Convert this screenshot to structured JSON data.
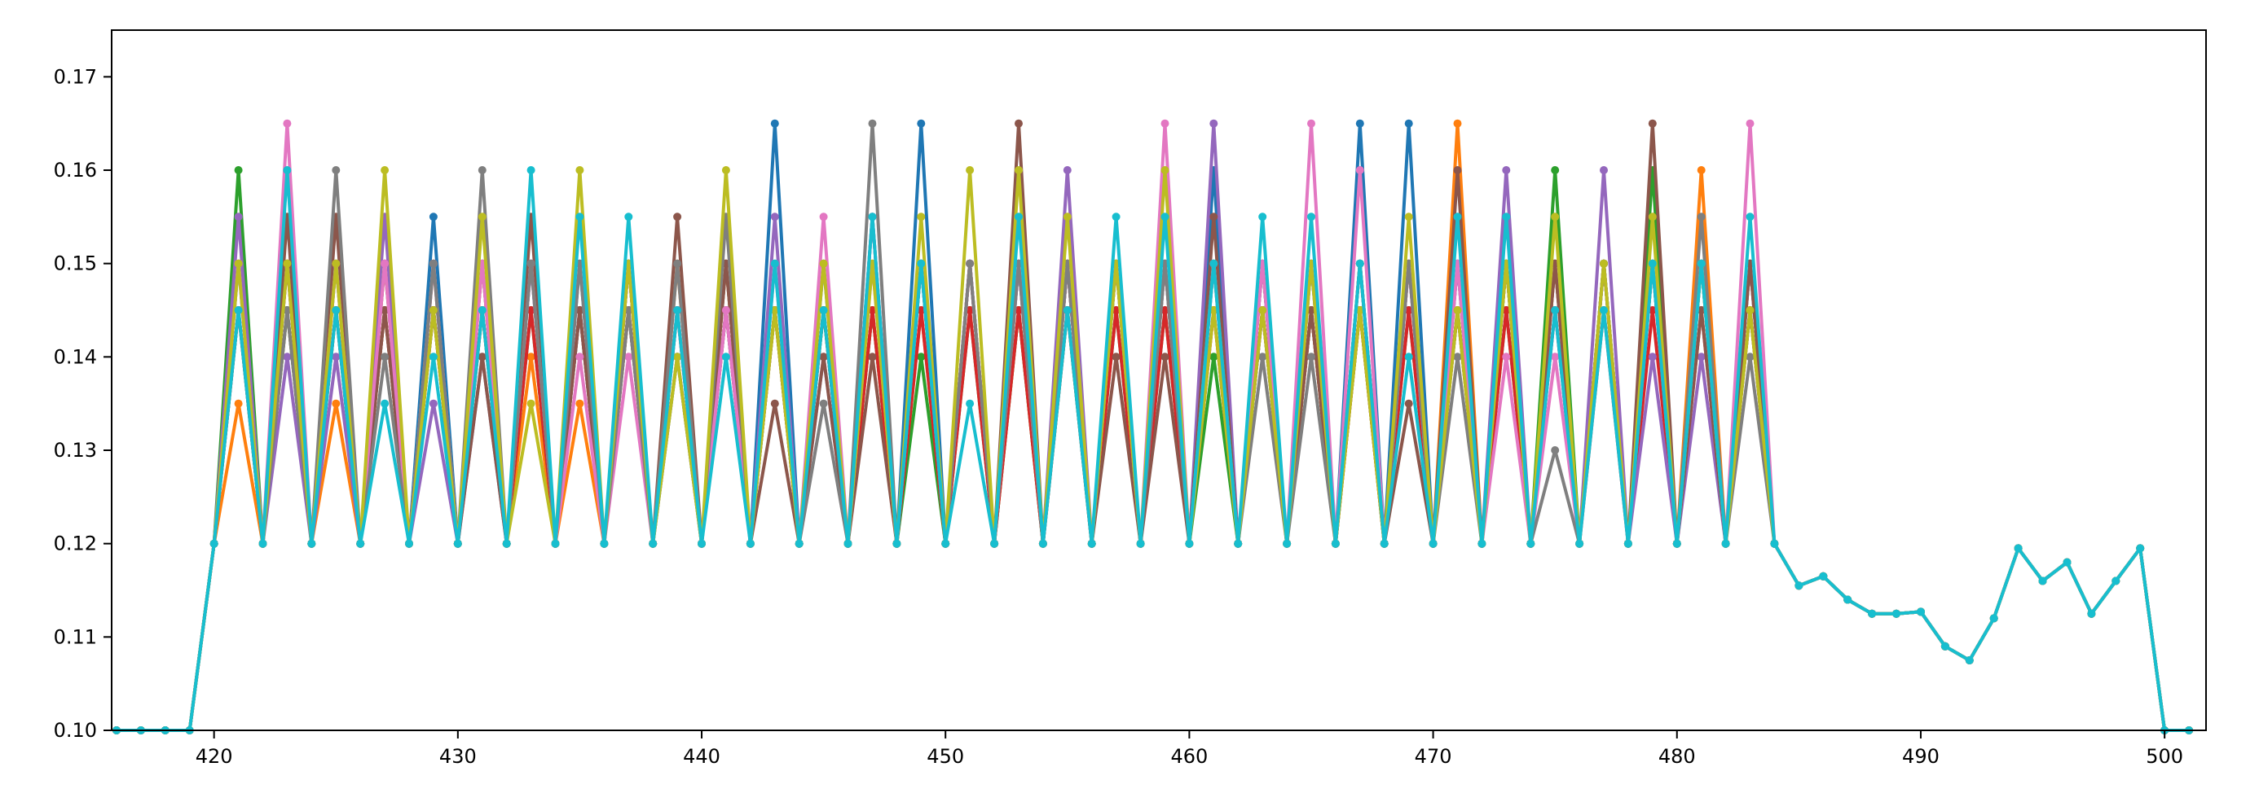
{
  "chart_data": {
    "type": "line",
    "title": "",
    "xlabel": "",
    "ylabel": "",
    "xlim": [
      415.8,
      501.7
    ],
    "ylim": [
      0.1,
      0.175
    ],
    "grid": false,
    "legend": "none",
    "markers": true,
    "x_ticks": [
      420,
      430,
      440,
      450,
      460,
      470,
      480,
      490,
      500
    ],
    "y_ticks": [
      0.1,
      0.11,
      0.12,
      0.13,
      0.14,
      0.15,
      0.16,
      0.17
    ],
    "x_tick_labels": [
      "420",
      "430",
      "440",
      "450",
      "460",
      "470",
      "480",
      "490",
      "500"
    ],
    "y_tick_labels": [
      "0.10",
      "0.11",
      "0.12",
      "0.13",
      "0.14",
      "0.15",
      "0.16",
      "0.17"
    ],
    "x": [
      416,
      417,
      418,
      419,
      420,
      421,
      422,
      423,
      424,
      425,
      426,
      427,
      428,
      429,
      430,
      431,
      432,
      433,
      434,
      435,
      436,
      437,
      438,
      439,
      440,
      441,
      442,
      443,
      444,
      445,
      446,
      447,
      448,
      449,
      450,
      451,
      452,
      453,
      454,
      455,
      456,
      457,
      458,
      459,
      460,
      461,
      462,
      463,
      464,
      465,
      466,
      467,
      468,
      469,
      470,
      471,
      472,
      473,
      474,
      475,
      476,
      477,
      478,
      479,
      480,
      481,
      482,
      483,
      484,
      485,
      486,
      487,
      488,
      489,
      490,
      491,
      492,
      493,
      494,
      495,
      496,
      497,
      498,
      499,
      500,
      501
    ],
    "base": [
      0.1,
      0.1,
      0.1,
      0.1,
      0.12,
      null,
      0.12,
      null,
      0.12,
      null,
      0.12,
      null,
      0.12,
      null,
      0.12,
      null,
      0.12,
      null,
      0.12,
      null,
      0.12,
      null,
      0.12,
      null,
      0.12,
      null,
      0.12,
      null,
      0.12,
      null,
      0.12,
      null,
      0.12,
      null,
      0.12,
      null,
      0.12,
      null,
      0.12,
      null,
      0.12,
      null,
      0.12,
      null,
      0.12,
      null,
      0.12,
      null,
      0.12,
      null,
      0.12,
      null,
      0.12,
      null,
      0.12,
      null,
      0.12,
      null,
      0.12,
      null,
      0.12,
      null,
      0.12,
      null,
      0.12,
      null,
      0.12,
      null,
      0.12,
      0.1155,
      0.1165,
      0.114,
      0.1125,
      0.1125,
      0.1127,
      0.109,
      0.1075,
      0.112,
      0.1195,
      0.116,
      0.118,
      0.1125,
      0.116,
      0.1195,
      0.1,
      0.1
    ],
    "peak_x": [
      421,
      423,
      425,
      427,
      429,
      431,
      433,
      435,
      437,
      439,
      441,
      443,
      445,
      447,
      449,
      451,
      453,
      455,
      457,
      459,
      461,
      463,
      465,
      467,
      469,
      471,
      473,
      475,
      477,
      479,
      481,
      483
    ],
    "series": [
      {
        "color": "#1f77b4",
        "peaks": [
          0.15,
          0.15,
          0.15,
          0.15,
          0.155,
          0.15,
          0.15,
          0.15,
          0.15,
          0.145,
          0.15,
          0.165,
          0.15,
          0.155,
          0.165,
          0.15,
          0.15,
          0.15,
          0.15,
          0.15,
          0.16,
          0.15,
          0.15,
          0.165,
          0.165,
          0.15,
          0.15,
          0.15,
          0.15,
          0.15,
          0.15,
          0.15
        ]
      },
      {
        "color": "#ff7f0e",
        "peaks": [
          0.135,
          0.145,
          0.135,
          0.15,
          0.15,
          0.15,
          0.14,
          0.135,
          0.15,
          0.15,
          0.15,
          0.145,
          0.145,
          0.145,
          0.145,
          0.15,
          0.145,
          0.15,
          0.15,
          0.15,
          0.145,
          0.145,
          0.145,
          0.145,
          0.15,
          0.165,
          0.15,
          0.15,
          0.15,
          0.15,
          0.16,
          0.15
        ]
      },
      {
        "color": "#2ca02c",
        "peaks": [
          0.16,
          0.145,
          0.145,
          0.145,
          0.145,
          0.145,
          0.145,
          0.145,
          0.145,
          0.14,
          0.145,
          0.145,
          0.145,
          0.145,
          0.14,
          0.145,
          0.145,
          0.145,
          0.145,
          0.145,
          0.14,
          0.145,
          0.145,
          0.145,
          0.145,
          0.145,
          0.145,
          0.16,
          0.15,
          0.16,
          0.15,
          0.145
        ]
      },
      {
        "color": "#d62728",
        "peaks": [
          0.145,
          0.15,
          0.145,
          0.145,
          0.145,
          0.145,
          0.145,
          0.145,
          0.145,
          0.145,
          0.145,
          0.145,
          0.145,
          0.145,
          0.145,
          0.145,
          0.145,
          0.145,
          0.145,
          0.145,
          0.145,
          0.145,
          0.145,
          0.145,
          0.145,
          0.145,
          0.145,
          0.145,
          0.145,
          0.145,
          0.145,
          0.145
        ]
      },
      {
        "color": "#9467bd",
        "peaks": [
          0.155,
          0.14,
          0.14,
          0.155,
          0.135,
          0.14,
          0.15,
          0.145,
          0.15,
          0.14,
          0.145,
          0.155,
          0.14,
          0.155,
          0.15,
          0.15,
          0.15,
          0.16,
          0.15,
          0.15,
          0.165,
          0.145,
          0.15,
          0.15,
          0.15,
          0.15,
          0.16,
          0.145,
          0.16,
          0.14,
          0.14,
          0.15
        ]
      },
      {
        "color": "#8c564b",
        "peaks": [
          0.145,
          0.155,
          0.155,
          0.145,
          0.145,
          0.14,
          0.155,
          0.145,
          0.15,
          0.155,
          0.15,
          0.135,
          0.14,
          0.14,
          0.15,
          0.15,
          0.165,
          0.15,
          0.14,
          0.14,
          0.155,
          0.15,
          0.145,
          0.15,
          0.135,
          0.16,
          0.15,
          0.15,
          0.15,
          0.165,
          0.145,
          0.15
        ]
      },
      {
        "color": "#e377c2",
        "peaks": [
          0.15,
          0.165,
          0.15,
          0.15,
          0.15,
          0.15,
          0.15,
          0.14,
          0.14,
          0.145,
          0.145,
          0.15,
          0.155,
          0.15,
          0.15,
          0.15,
          0.15,
          0.15,
          0.15,
          0.165,
          0.15,
          0.15,
          0.165,
          0.16,
          0.15,
          0.15,
          0.14,
          0.14,
          0.15,
          0.15,
          0.15,
          0.165
        ]
      },
      {
        "color": "#7f7f7f",
        "peaks": [
          0.145,
          0.145,
          0.16,
          0.14,
          0.15,
          0.16,
          0.15,
          0.15,
          0.145,
          0.15,
          0.155,
          0.145,
          0.135,
          0.165,
          0.15,
          0.15,
          0.15,
          0.15,
          0.15,
          0.15,
          0.15,
          0.14,
          0.14,
          0.15,
          0.15,
          0.14,
          0.15,
          0.13,
          0.15,
          0.15,
          0.155,
          0.14
        ]
      },
      {
        "color": "#bcbd22",
        "peaks": [
          0.15,
          0.15,
          0.15,
          0.16,
          0.145,
          0.155,
          0.135,
          0.16,
          0.15,
          0.14,
          0.16,
          0.145,
          0.15,
          0.15,
          0.155,
          0.16,
          0.16,
          0.155,
          0.15,
          0.16,
          0.145,
          0.145,
          0.15,
          0.145,
          0.155,
          0.145,
          0.15,
          0.155,
          0.15,
          0.155,
          0.15,
          0.145
        ]
      },
      {
        "color": "#17becf",
        "peaks": [
          0.145,
          0.16,
          0.145,
          0.135,
          0.14,
          0.145,
          0.16,
          0.155,
          0.155,
          0.145,
          0.14,
          0.15,
          0.145,
          0.155,
          0.15,
          0.135,
          0.155,
          0.145,
          0.155,
          0.155,
          0.15,
          0.155,
          0.155,
          0.15,
          0.14,
          0.155,
          0.155,
          0.145,
          0.145,
          0.15,
          0.15,
          0.155
        ]
      }
    ]
  }
}
